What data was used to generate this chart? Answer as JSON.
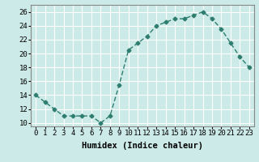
{
  "x": [
    0,
    1,
    2,
    3,
    4,
    5,
    6,
    7,
    8,
    9,
    10,
    11,
    12,
    13,
    14,
    15,
    16,
    17,
    18,
    19,
    20,
    21,
    22,
    23
  ],
  "y": [
    14,
    13,
    12,
    11,
    11,
    11,
    11,
    10,
    11,
    15.5,
    20.5,
    21.5,
    22.5,
    24,
    24.5,
    25,
    25,
    25.5,
    26,
    25,
    23.5,
    21.5,
    19.5,
    18
  ],
  "line_color": "#2e7d6e",
  "marker": "D",
  "marker_size": 2.5,
  "line_width": 1.0,
  "background_color": "#cceae7",
  "grid_color": "#ffffff",
  "xlabel": "Humidex (Indice chaleur)",
  "xlim": [
    -0.5,
    23.5
  ],
  "ylim": [
    9.5,
    27
  ],
  "yticks": [
    10,
    12,
    14,
    16,
    18,
    20,
    22,
    24,
    26
  ],
  "xticks": [
    0,
    1,
    2,
    3,
    4,
    5,
    6,
    7,
    8,
    9,
    10,
    11,
    12,
    13,
    14,
    15,
    16,
    17,
    18,
    19,
    20,
    21,
    22,
    23
  ],
  "xtick_labels": [
    "0",
    "1",
    "2",
    "3",
    "4",
    "5",
    "6",
    "7",
    "8",
    "9",
    "10",
    "11",
    "12",
    "13",
    "14",
    "15",
    "16",
    "17",
    "18",
    "19",
    "20",
    "21",
    "22",
    "23"
  ],
  "tick_fontsize": 6.5,
  "xlabel_fontsize": 7.5,
  "xlabel_fontweight": "bold"
}
